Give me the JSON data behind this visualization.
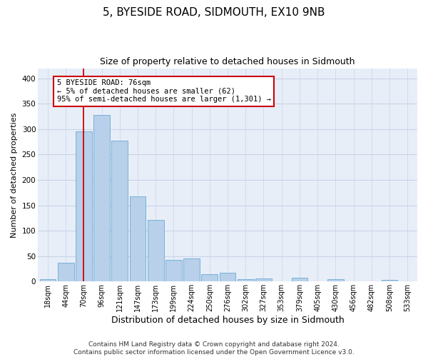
{
  "title": "5, BYESIDE ROAD, SIDMOUTH, EX10 9NB",
  "subtitle": "Size of property relative to detached houses in Sidmouth",
  "xlabel": "Distribution of detached houses by size in Sidmouth",
  "ylabel": "Number of detached properties",
  "bar_labels": [
    "18sqm",
    "44sqm",
    "70sqm",
    "96sqm",
    "121sqm",
    "147sqm",
    "173sqm",
    "199sqm",
    "224sqm",
    "250sqm",
    "276sqm",
    "302sqm",
    "327sqm",
    "353sqm",
    "379sqm",
    "405sqm",
    "430sqm",
    "456sqm",
    "482sqm",
    "508sqm",
    "533sqm"
  ],
  "bar_values": [
    4,
    37,
    296,
    328,
    278,
    168,
    122,
    43,
    46,
    15,
    17,
    5,
    6,
    0,
    7,
    0,
    4,
    0,
    0,
    3,
    0
  ],
  "bar_color": "#b8d0ea",
  "bar_edge_color": "#6aaad4",
  "vline_x": 2,
  "vline_color": "#cc0000",
  "annotation_text": "5 BYESIDE ROAD: 76sqm\n← 5% of detached houses are smaller (62)\n95% of semi-detached houses are larger (1,301) →",
  "annotation_box_color": "#ffffff",
  "annotation_box_edge": "#cc0000",
  "ylim": [
    0,
    420
  ],
  "yticks": [
    0,
    50,
    100,
    150,
    200,
    250,
    300,
    350,
    400
  ],
  "grid_color": "#c8d4e8",
  "bg_color": "#e8eef8",
  "footer": "Contains HM Land Registry data © Crown copyright and database right 2024.\nContains public sector information licensed under the Open Government Licence v3.0.",
  "title_fontsize": 11,
  "subtitle_fontsize": 9,
  "xlabel_fontsize": 9,
  "ylabel_fontsize": 8,
  "footer_fontsize": 6.5,
  "annotation_fontsize": 7.5
}
